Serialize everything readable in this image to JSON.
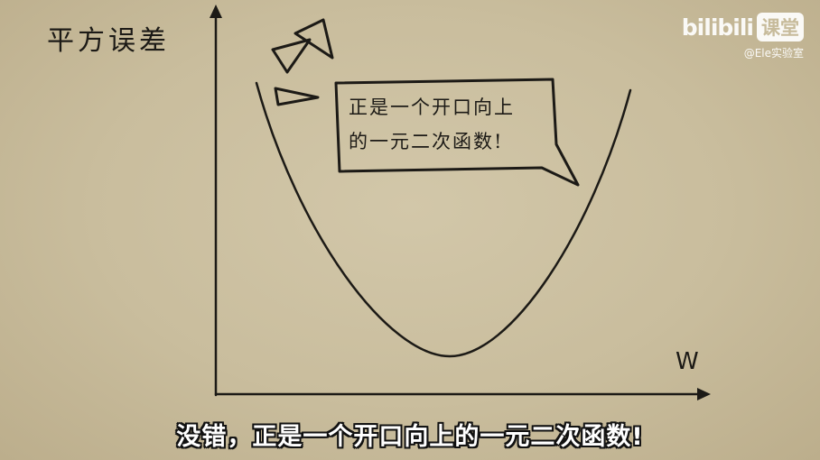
{
  "diagram": {
    "y_axis_label": "平方误差",
    "x_axis_label": "W",
    "speech_bubble": {
      "line1": "正是一个开口向上",
      "line2": "的一元二次函数!"
    }
  },
  "watermark": {
    "logo": "bilibili",
    "badge": "课堂",
    "handle": "@Ele实验室"
  },
  "subtitle": "没错，正是一个开口向上的一元二次函数!",
  "colors": {
    "background": "#cbbf9f",
    "ink": "#1c1a16",
    "subtitle_text": "#ffffff"
  }
}
